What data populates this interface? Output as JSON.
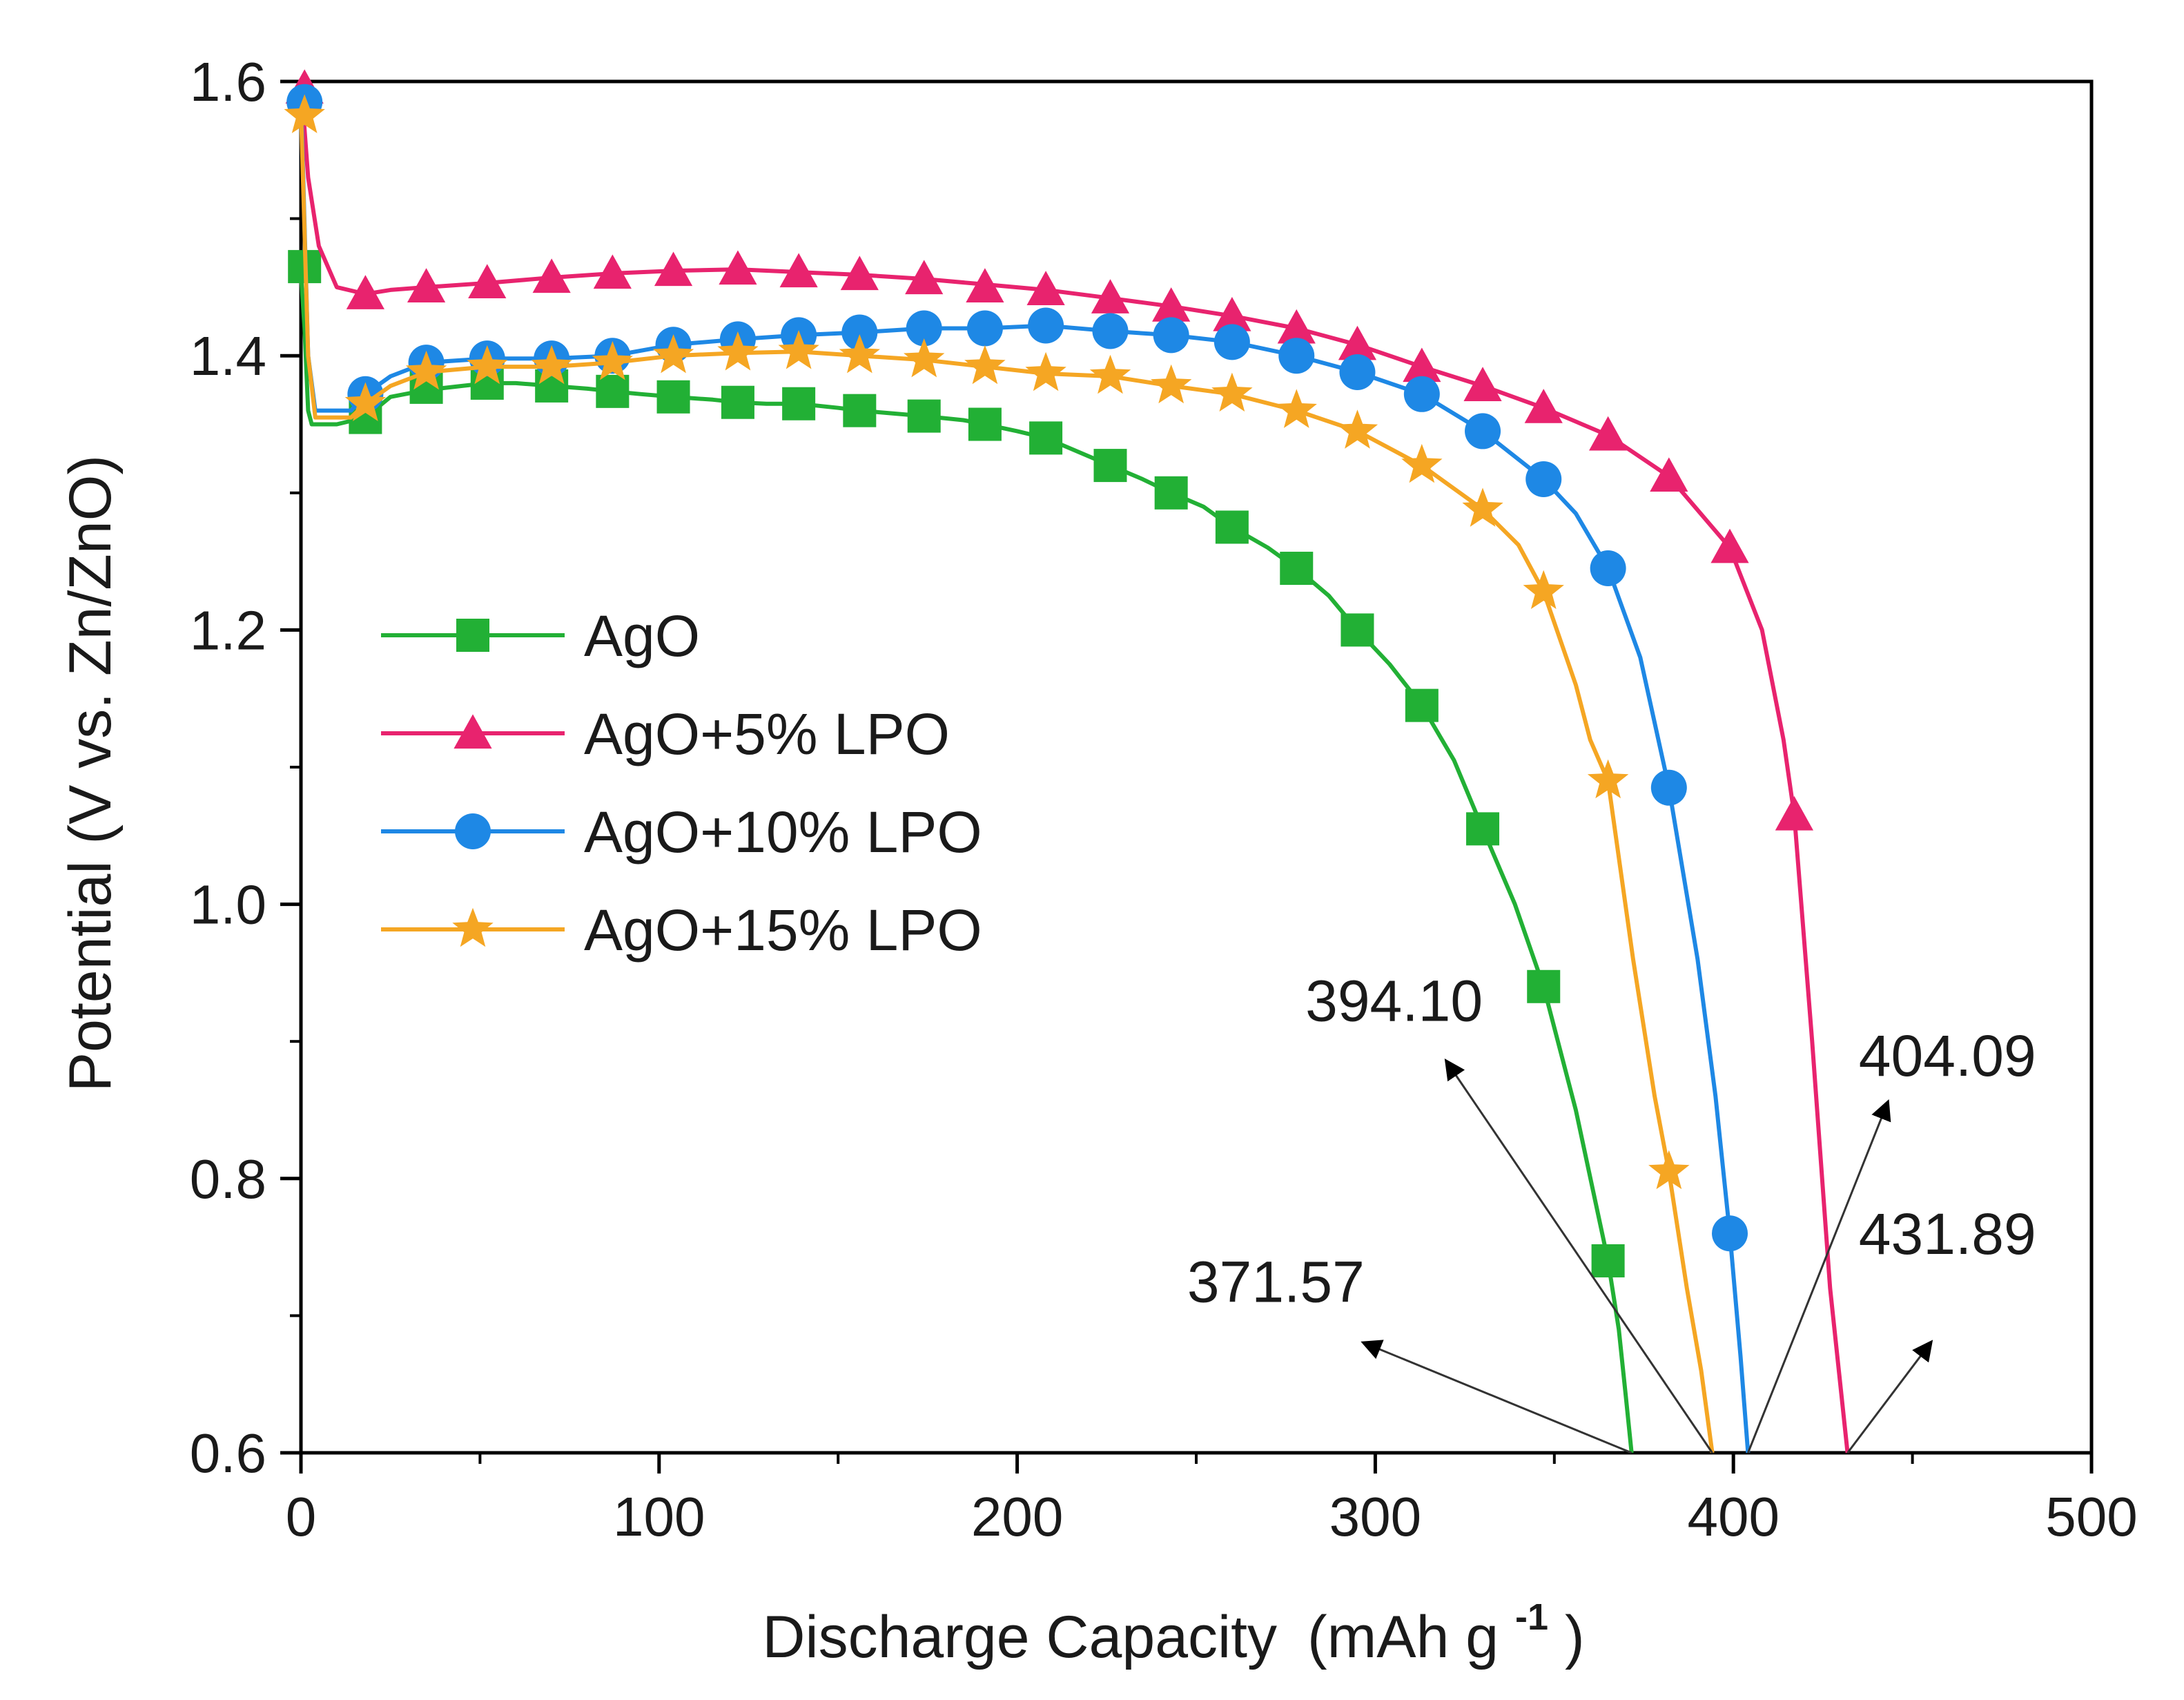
{
  "chart_data": {
    "type": "line",
    "title": "",
    "xlabel": "Discharge Capacity",
    "xlabel_unit": "(mAh g",
    "xlabel_unit_exponent": "-1",
    "xlabel_unit_close": ")",
    "ylabel": "Potential (V vs. Zn/ZnO)",
    "xlim": [
      0,
      500
    ],
    "ylim": [
      0.6,
      1.6
    ],
    "xticks": [
      0,
      100,
      200,
      300,
      400,
      500
    ],
    "xtick_labels": [
      "0",
      "100",
      "200",
      "300",
      "400",
      "500"
    ],
    "yticks": [
      0.6,
      0.8,
      1.0,
      1.2,
      1.4,
      1.6
    ],
    "ytick_labels": [
      "0.6",
      "0.8",
      "1.0",
      "1.2",
      "1.4",
      "1.6"
    ],
    "grid": false,
    "legend_position": "center-left",
    "series": [
      {
        "name": "AgO",
        "color": "#22b035",
        "marker": "square",
        "x": [
          0,
          1,
          2,
          3,
          5,
          10,
          18,
          25,
          35,
          45,
          52,
          60,
          70,
          80,
          87,
          95,
          104,
          115,
          122,
          130,
          139,
          150,
          156,
          165,
          174,
          185,
          191,
          200,
          208,
          217,
          226,
          235,
          243,
          252,
          260,
          270,
          278,
          287,
          295,
          304,
          313,
          322,
          330,
          339,
          347,
          356,
          365,
          368,
          370,
          371.57
        ],
        "y": [
          1.46,
          1.42,
          1.36,
          1.35,
          1.35,
          1.35,
          1.355,
          1.37,
          1.375,
          1.378,
          1.38,
          1.38,
          1.378,
          1.376,
          1.374,
          1.372,
          1.37,
          1.368,
          1.366,
          1.365,
          1.365,
          1.362,
          1.36,
          1.358,
          1.356,
          1.353,
          1.35,
          1.345,
          1.34,
          1.33,
          1.32,
          1.31,
          1.3,
          1.29,
          1.275,
          1.26,
          1.245,
          1.225,
          1.2,
          1.175,
          1.145,
          1.105,
          1.055,
          1.0,
          0.94,
          0.85,
          0.74,
          0.69,
          0.64,
          0.6
        ],
        "markers_x": [
          1,
          18,
          35,
          52,
          70,
          87,
          104,
          122,
          139,
          156,
          174,
          191,
          208,
          226,
          243,
          260,
          278,
          295,
          313,
          330,
          347,
          365
        ],
        "markers_y": [
          1.465,
          1.355,
          1.377,
          1.38,
          1.378,
          1.374,
          1.37,
          1.366,
          1.365,
          1.36,
          1.356,
          1.35,
          1.34,
          1.32,
          1.3,
          1.275,
          1.245,
          1.2,
          1.145,
          1.055,
          0.94,
          0.74
        ]
      },
      {
        "name": "AgO+5% LPO",
        "color": "#e8236e",
        "marker": "triangle",
        "x": [
          0,
          2,
          5,
          10,
          18,
          25,
          35,
          52,
          70,
          87,
          104,
          122,
          139,
          156,
          174,
          191,
          208,
          226,
          243,
          260,
          278,
          295,
          313,
          330,
          347,
          365,
          382,
          399,
          408,
          414,
          417,
          422,
          427,
          431.89
        ],
        "y": [
          1.6,
          1.53,
          1.48,
          1.45,
          1.445,
          1.448,
          1.45,
          1.453,
          1.457,
          1.46,
          1.462,
          1.463,
          1.461,
          1.459,
          1.456,
          1.452,
          1.448,
          1.442,
          1.436,
          1.429,
          1.42,
          1.408,
          1.392,
          1.378,
          1.362,
          1.342,
          1.312,
          1.26,
          1.2,
          1.12,
          1.065,
          0.9,
          0.72,
          0.6
        ],
        "markers_x": [
          1,
          18,
          35,
          52,
          70,
          87,
          104,
          122,
          139,
          156,
          174,
          191,
          208,
          226,
          243,
          260,
          278,
          295,
          313,
          330,
          347,
          365,
          382,
          399,
          417
        ],
        "markers_y": [
          1.595,
          1.445,
          1.45,
          1.453,
          1.457,
          1.46,
          1.462,
          1.463,
          1.461,
          1.459,
          1.456,
          1.45,
          1.448,
          1.442,
          1.436,
          1.429,
          1.42,
          1.408,
          1.392,
          1.378,
          1.362,
          1.342,
          1.312,
          1.26,
          1.065
        ]
      },
      {
        "name": "AgO+10% LPO",
        "color": "#1e88e5",
        "marker": "circle",
        "x": [
          0,
          2,
          4,
          8,
          14,
          18,
          25,
          35,
          52,
          70,
          87,
          104,
          122,
          139,
          156,
          174,
          191,
          208,
          226,
          243,
          260,
          278,
          295,
          313,
          330,
          347,
          356,
          365,
          374,
          382,
          390,
          395,
          399,
          402,
          404.09
        ],
        "y": [
          1.59,
          1.4,
          1.36,
          1.36,
          1.36,
          1.372,
          1.385,
          1.395,
          1.398,
          1.398,
          1.4,
          1.408,
          1.412,
          1.415,
          1.417,
          1.42,
          1.42,
          1.422,
          1.418,
          1.415,
          1.41,
          1.4,
          1.388,
          1.372,
          1.345,
          1.31,
          1.285,
          1.245,
          1.18,
          1.085,
          0.96,
          0.86,
          0.76,
          0.67,
          0.6
        ],
        "markers_x": [
          1,
          18,
          35,
          52,
          70,
          87,
          104,
          122,
          139,
          156,
          174,
          191,
          208,
          226,
          243,
          260,
          278,
          295,
          313,
          330,
          347,
          365,
          382,
          399
        ],
        "markers_y": [
          1.585,
          1.372,
          1.395,
          1.398,
          1.398,
          1.4,
          1.408,
          1.412,
          1.415,
          1.417,
          1.42,
          1.42,
          1.422,
          1.418,
          1.415,
          1.41,
          1.4,
          1.388,
          1.372,
          1.345,
          1.31,
          1.245,
          1.085,
          0.76
        ]
      },
      {
        "name": "AgO+15% LPO",
        "color": "#f5a623",
        "marker": "star",
        "x": [
          0,
          2,
          4,
          8,
          14,
          18,
          25,
          35,
          52,
          70,
          87,
          104,
          122,
          139,
          156,
          174,
          191,
          208,
          226,
          243,
          260,
          278,
          295,
          313,
          330,
          340,
          347,
          356,
          360,
          365,
          372,
          378,
          382,
          387,
          391,
          394.1
        ],
        "y": [
          1.58,
          1.4,
          1.355,
          1.355,
          1.355,
          1.365,
          1.378,
          1.388,
          1.392,
          1.392,
          1.395,
          1.4,
          1.402,
          1.403,
          1.4,
          1.397,
          1.392,
          1.387,
          1.385,
          1.378,
          1.372,
          1.36,
          1.345,
          1.32,
          1.288,
          1.262,
          1.228,
          1.16,
          1.12,
          1.09,
          0.96,
          0.86,
          0.805,
          0.72,
          0.66,
          0.6
        ],
        "markers_x": [
          1,
          18,
          35,
          52,
          70,
          87,
          104,
          122,
          139,
          156,
          174,
          191,
          208,
          226,
          243,
          260,
          278,
          295,
          313,
          330,
          347,
          365,
          382
        ],
        "markers_y": [
          1.575,
          1.365,
          1.388,
          1.392,
          1.392,
          1.395,
          1.4,
          1.402,
          1.403,
          1.4,
          1.397,
          1.392,
          1.387,
          1.385,
          1.378,
          1.372,
          1.36,
          1.345,
          1.32,
          1.288,
          1.228,
          1.09,
          0.805
        ]
      }
    ],
    "annotations": [
      {
        "text": "371.57",
        "from": [
          371.57,
          0.6
        ],
        "to": [
          297,
          0.68
        ],
        "label_at": [
          297,
          0.71
        ],
        "anchor": "end"
      },
      {
        "text": "394.10",
        "from": [
          394.1,
          0.6
        ],
        "to": [
          320,
          0.885
        ],
        "label_at": [
          330,
          0.915
        ],
        "anchor": "end"
      },
      {
        "text": "404.09",
        "from": [
          404.09,
          0.6
        ],
        "to": [
          443,
          0.855
        ],
        "label_at": [
          435,
          0.875
        ],
        "anchor": "start"
      },
      {
        "text": "431.89",
        "from": [
          431.89,
          0.6
        ],
        "to": [
          455,
          0.68
        ],
        "label_at": [
          435,
          0.745
        ],
        "anchor": "start"
      }
    ]
  }
}
